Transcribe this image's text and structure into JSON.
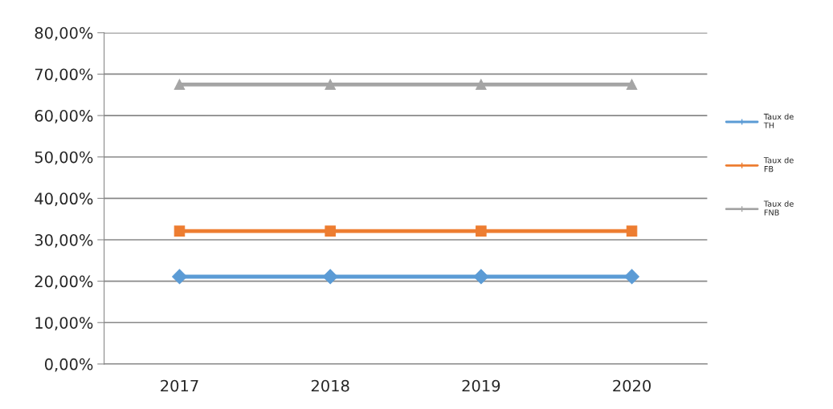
{
  "chart_data": {
    "type": "line",
    "categories": [
      "2017",
      "2018",
      "2019",
      "2020"
    ],
    "series": [
      {
        "name": "Taux de\nTH",
        "color": "#5b9bd5",
        "values": [
          21.1,
          21.1,
          21.1,
          21.1
        ],
        "marker": "diamond"
      },
      {
        "name": "Taux de\nFB",
        "color": "#ed7d31",
        "values": [
          32.1,
          32.1,
          32.1,
          32.1
        ],
        "marker": "square"
      },
      {
        "name": "Taux de\nFNB",
        "color": "#a5a5a5",
        "values": [
          67.5,
          67.5,
          67.5,
          67.5
        ],
        "marker": "triangle"
      }
    ],
    "ylim": [
      0,
      80
    ],
    "yticks": [
      {
        "value": 0,
        "label": "0,00%"
      },
      {
        "value": 10,
        "label": "10,00%"
      },
      {
        "value": 20,
        "label": "20,00%"
      },
      {
        "value": 30,
        "label": "30,00%"
      },
      {
        "value": 40,
        "label": "40,00%"
      },
      {
        "value": 50,
        "label": "50,00%"
      },
      {
        "value": 60,
        "label": "60,00%"
      },
      {
        "value": 70,
        "label": "70,00%"
      },
      {
        "value": 80,
        "label": "80,00%"
      }
    ],
    "grid": "y",
    "legend": "right"
  }
}
